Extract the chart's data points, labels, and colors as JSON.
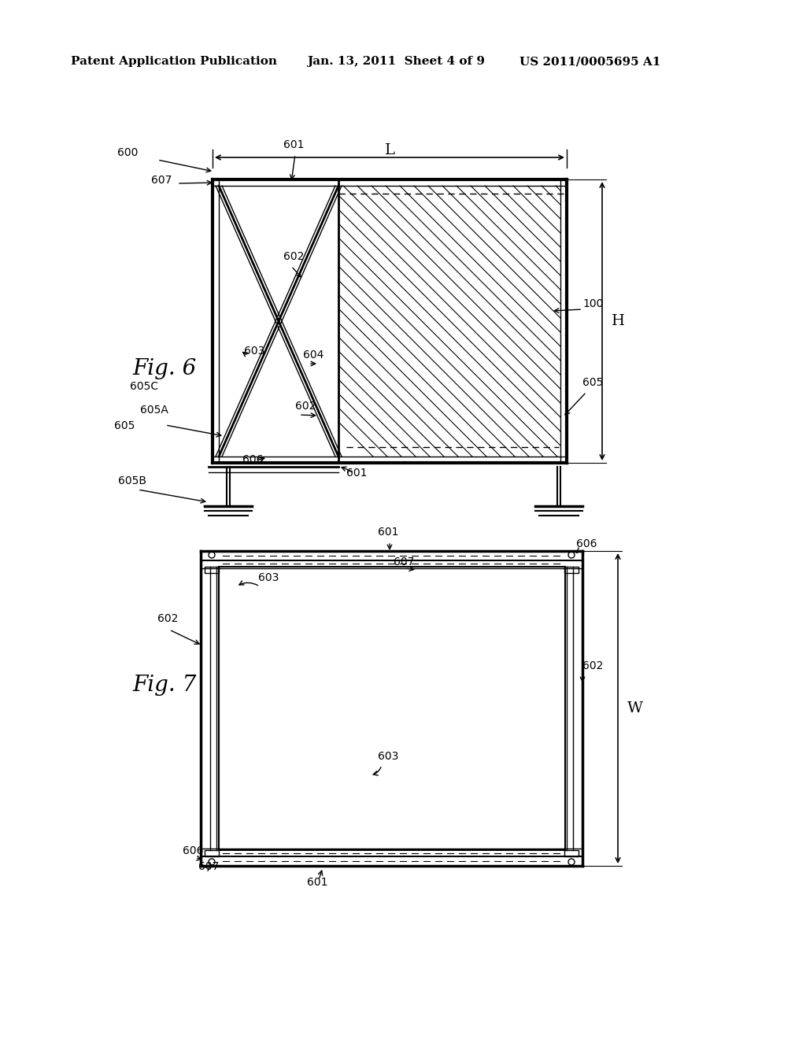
{
  "bg_color": "#ffffff",
  "header_left": "Patent Application Publication",
  "header_mid": "Jan. 13, 2011  Sheet 4 of 9",
  "header_right": "US 2011/0005695 A1",
  "fig6_label": "Fig. 6",
  "fig7_label": "Fig. 7"
}
